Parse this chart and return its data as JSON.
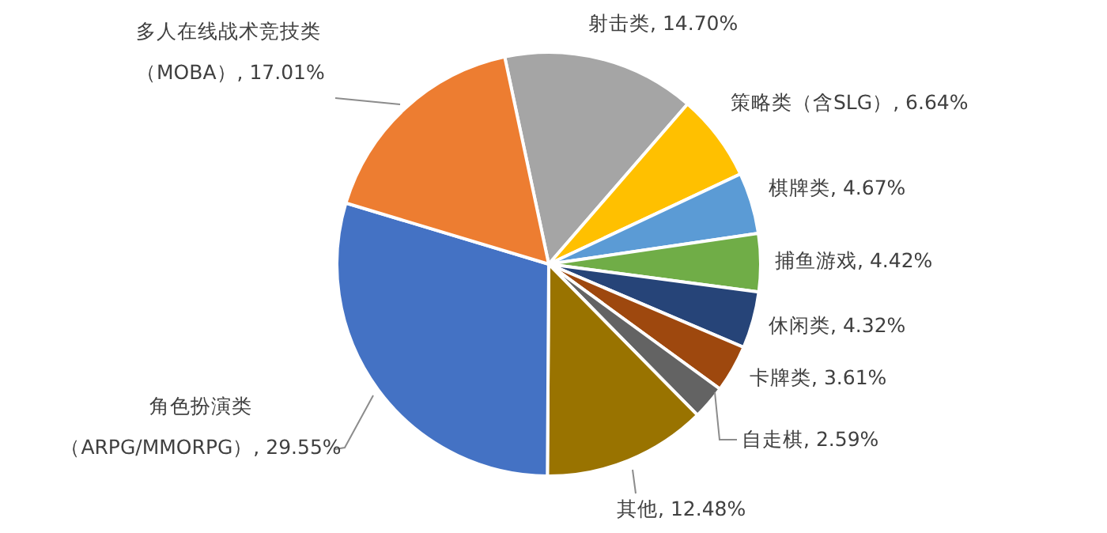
{
  "chart_data": {
    "type": "pie",
    "categories": [
      "射击类",
      "策略类（含SLG）",
      "棋牌类",
      "捕鱼游戏",
      "休闲类",
      "卡牌类",
      "自走棋",
      "其他",
      "角色扮演类（ARPG/MMORPG）",
      "多人在线战术竞技类（MOBA）"
    ],
    "values": [
      14.7,
      6.64,
      4.67,
      4.42,
      4.32,
      3.61,
      2.59,
      12.48,
      29.55,
      17.01
    ],
    "value_labels": [
      "14.70%",
      "6.64%",
      "4.67%",
      "4.42%",
      "4.32%",
      "3.61%",
      "2.59%",
      "12.48%",
      "29.55%",
      "17.01%"
    ],
    "colors": [
      "#a5a5a5",
      "#ffc000",
      "#5b9bd5",
      "#70ad47",
      "#264478",
      "#9e480e",
      "#636363",
      "#997300",
      "#4472c4",
      "#ed7d31"
    ]
  }
}
